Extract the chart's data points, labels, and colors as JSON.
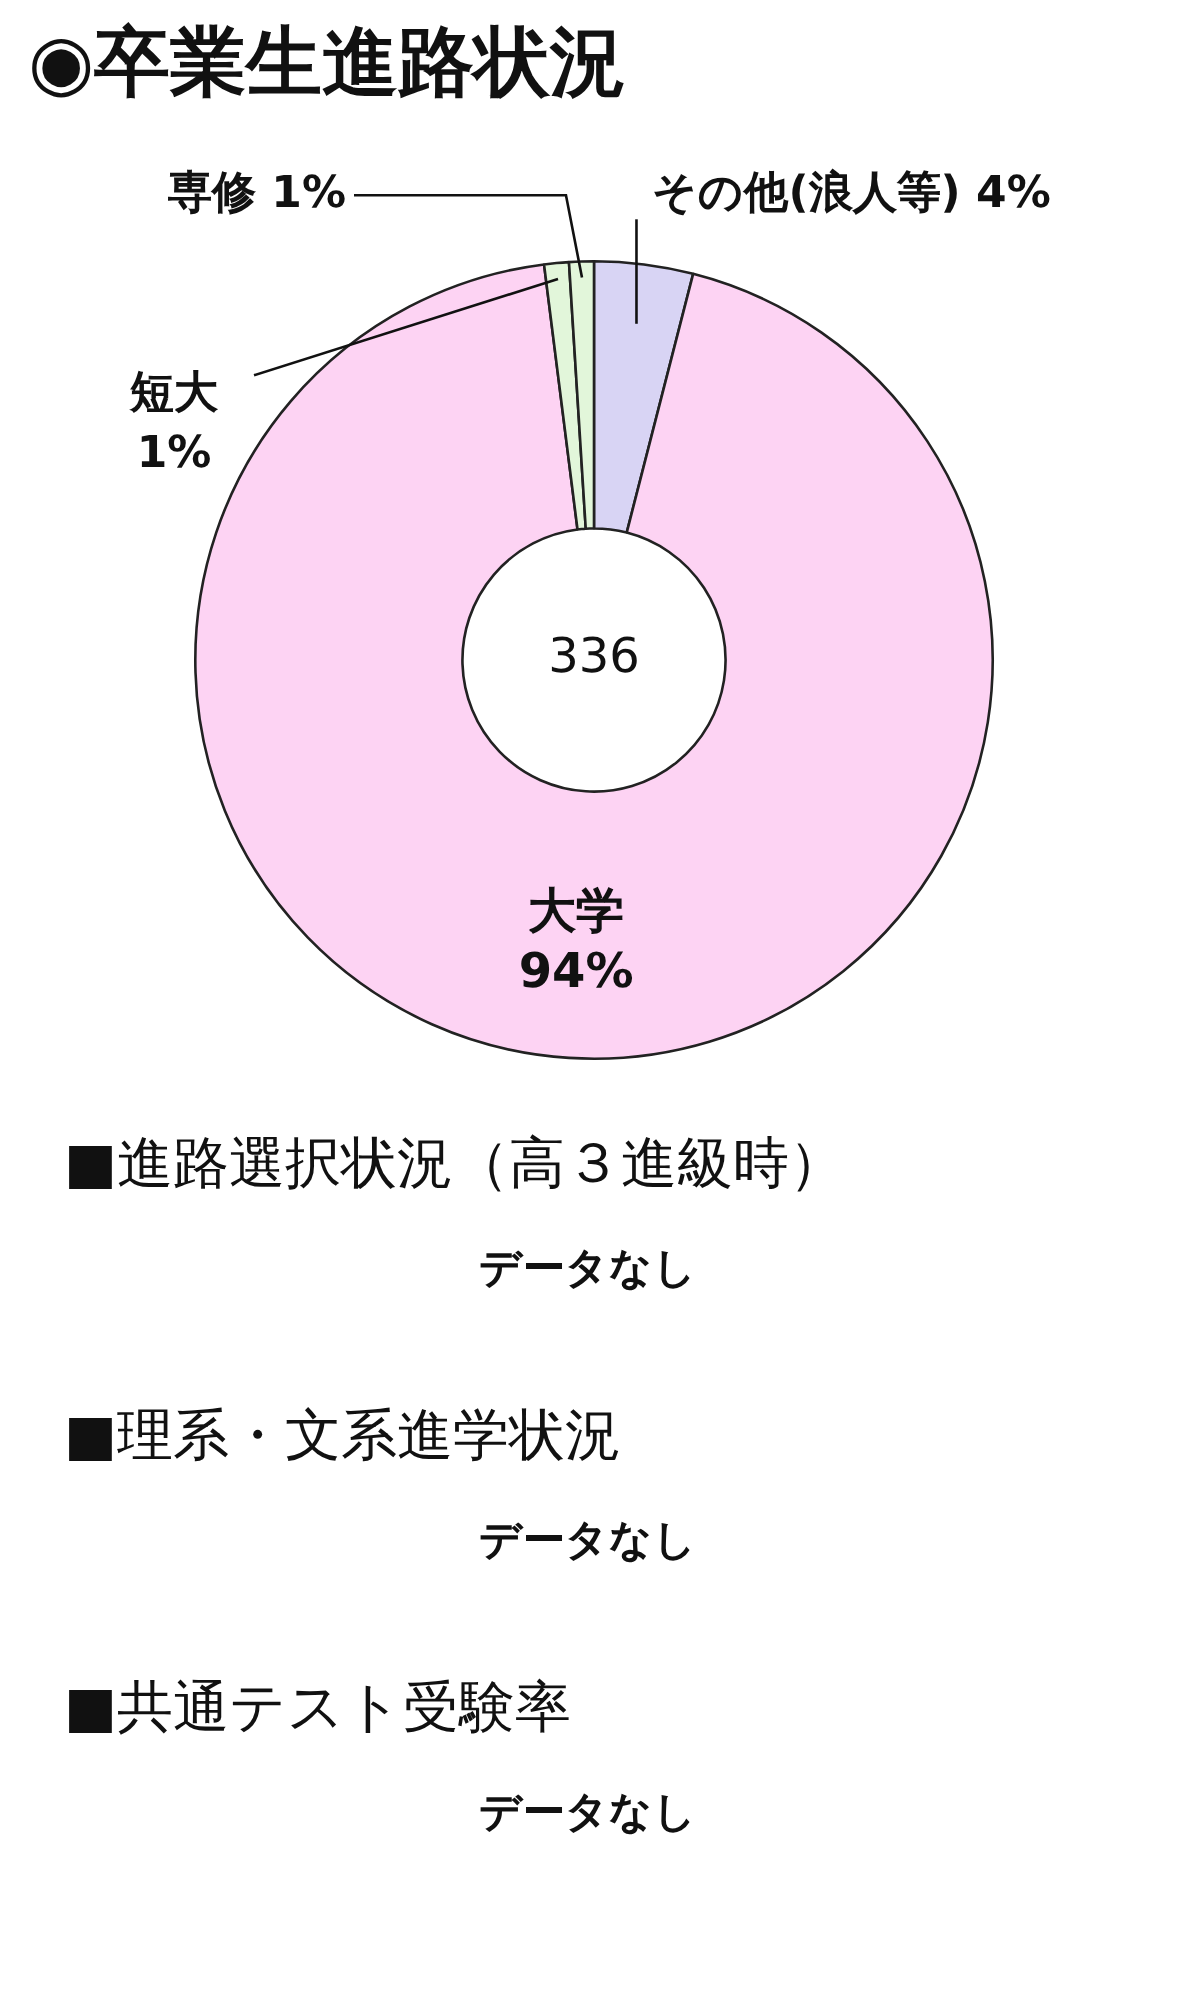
{
  "chart_data": {
    "type": "donut",
    "title": "◉卒業生進路状況",
    "categories": [
      "その他(浪人等)",
      "大学",
      "短大",
      "専修"
    ],
    "values": [
      4,
      94,
      1,
      1
    ],
    "value_labels": [
      "4%",
      "94%",
      "1%",
      "1%"
    ],
    "colors": [
      "#d8d4f4",
      "#fdd3f3",
      "#e2f6da",
      "#e2f6da"
    ],
    "legend": false,
    "annotations": [
      "336",
      "■進路選択状況（高３進級時）",
      "データなし",
      "■理系・文系進学状況",
      "データなし",
      "■共通テスト受験率",
      "データなし"
    ]
  }
}
